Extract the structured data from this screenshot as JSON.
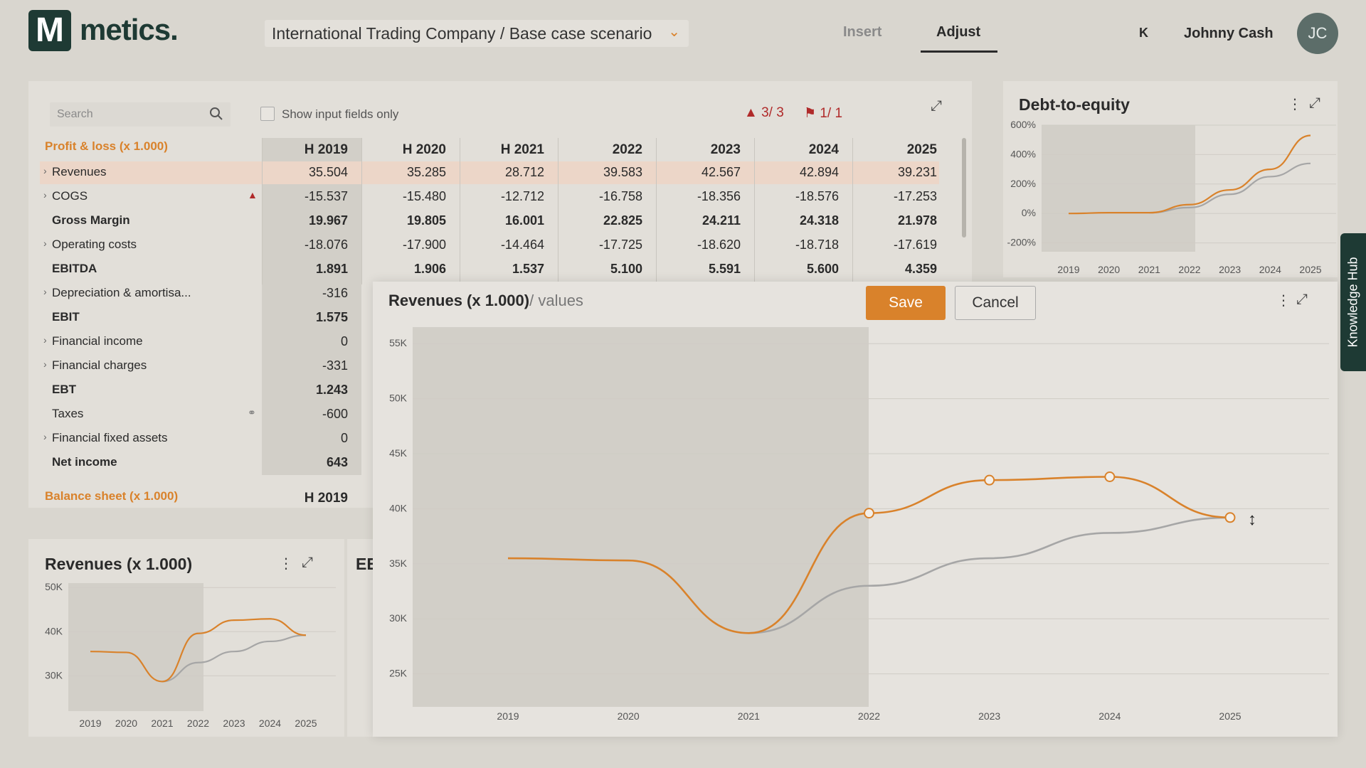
{
  "header": {
    "logo_letter": "M",
    "logo_text": "metics.",
    "scenario": "International Trading Company / Base case scenario",
    "tabs": [
      "Insert",
      "Adjust"
    ],
    "k_label": "K",
    "user_name": "Johnny Cash",
    "avatar_initials": "JC"
  },
  "table": {
    "search_placeholder": "Search",
    "show_inputs_label": "Show input fields only",
    "warnings": "3/ 3",
    "flags": "1/ 1",
    "section_title": "Profit & loss (x 1.000)",
    "columns": [
      "H 2019",
      "H 2020",
      "H 2021",
      "2022",
      "2023",
      "2024",
      "2025"
    ],
    "rows": [
      {
        "label": "Revenues",
        "values": [
          "35.504",
          "35.285",
          "28.712",
          "39.583",
          "42.567",
          "42.894",
          "39.231"
        ]
      },
      {
        "label": "COGS",
        "values": [
          "-15.537",
          "-15.480",
          "-12.712",
          "-16.758",
          "-18.356",
          "-18.576",
          "-17.253"
        ]
      },
      {
        "label": "Gross Margin",
        "values": [
          "19.967",
          "19.805",
          "16.001",
          "22.825",
          "24.211",
          "24.318",
          "21.978"
        ]
      },
      {
        "label": "Operating costs",
        "values": [
          "-18.076",
          "-17.900",
          "-14.464",
          "-17.725",
          "-18.620",
          "-18.718",
          "-17.619"
        ]
      },
      {
        "label": "EBITDA",
        "values": [
          "1.891",
          "1.906",
          "1.537",
          "5.100",
          "5.591",
          "5.600",
          "4.359"
        ]
      },
      {
        "label": "Depreciation & amortisa...",
        "values": [
          "-316"
        ]
      },
      {
        "label": "EBIT",
        "values": [
          "1.575"
        ]
      },
      {
        "label": "Financial income",
        "values": [
          "0"
        ]
      },
      {
        "label": "Financial charges",
        "values": [
          "-331"
        ]
      },
      {
        "label": "EBT",
        "values": [
          "1.243"
        ]
      },
      {
        "label": "Taxes",
        "values": [
          "-600"
        ]
      },
      {
        "label": "Financial fixed assets",
        "values": [
          "0"
        ]
      },
      {
        "label": "Net income",
        "values": [
          "643"
        ]
      }
    ],
    "balance_title": "Balance sheet (x 1.000)",
    "balance_col": "H 2019"
  },
  "debt_panel": {
    "title": "Debt-to-equity"
  },
  "rev_panel": {
    "title": "Revenues (x 1.000)"
  },
  "ee_panel": {
    "title": "EE"
  },
  "overlay": {
    "title": "Revenues (x 1.000)",
    "subtitle": "/ values",
    "save_label": "Save",
    "cancel_label": "Cancel"
  },
  "knowledge_hub": "Knowledge Hub",
  "colors": {
    "accent": "#d9822b",
    "brand": "#1e3a34",
    "comparison": "#a6a6a6",
    "warning": "#b02a2a"
  },
  "chart_data": [
    {
      "type": "line",
      "title": "Revenues (x 1.000) / values",
      "x": [
        "2019",
        "2020",
        "2021",
        "2022",
        "2023",
        "2024",
        "2025"
      ],
      "ylim": [
        22000,
        56000
      ],
      "yticks": [
        "55K",
        "50K",
        "45K",
        "40K",
        "35K",
        "30K",
        "25K"
      ],
      "series": [
        {
          "values": [
            35500,
            35300,
            28700,
            39600,
            42600,
            42900,
            39200
          ]
        },
        {
          "values": [
            null,
            null,
            28700,
            33000,
            35500,
            37800,
            39200
          ]
        }
      ]
    },
    {
      "type": "line",
      "title": "Debt-to-equity",
      "x": [
        "2019",
        "2020",
        "2021",
        "2022",
        "2023",
        "2024",
        "2025"
      ],
      "yticks": [
        "600%",
        "400%",
        "200%",
        "0%",
        "-200%"
      ],
      "series": [
        {
          "values": [
            0,
            5,
            5,
            60,
            160,
            300,
            530
          ]
        },
        {
          "values": [
            null,
            null,
            5,
            40,
            130,
            250,
            340
          ]
        }
      ]
    },
    {
      "type": "line",
      "title": "Revenues (x 1.000)",
      "x": [
        "2019",
        "2020",
        "2021",
        "2022",
        "2023",
        "2024",
        "2025"
      ],
      "yticks": [
        "50K",
        "40K",
        "30K"
      ],
      "series": [
        {
          "values": [
            35500,
            35300,
            28700,
            39600,
            42600,
            42900,
            39200
          ]
        },
        {
          "values": [
            null,
            null,
            28700,
            33000,
            35500,
            37800,
            39200
          ]
        }
      ]
    }
  ]
}
